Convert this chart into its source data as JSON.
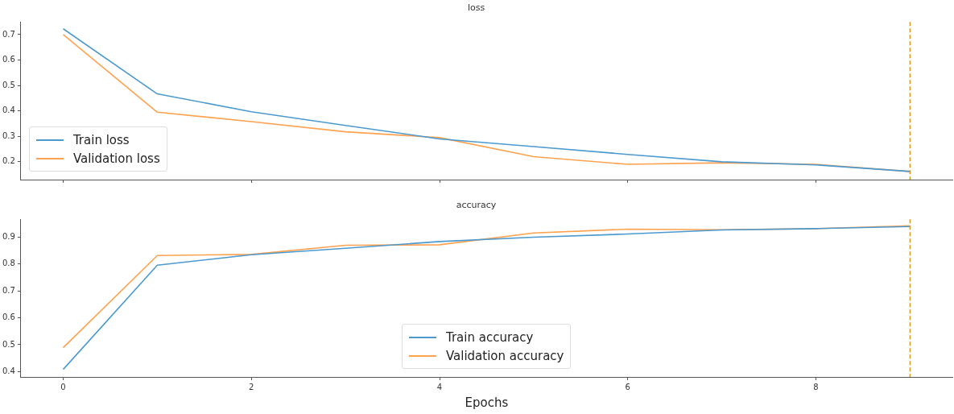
{
  "chart_data": [
    {
      "type": "line",
      "title": "loss",
      "x": [
        0,
        1,
        2,
        3,
        4,
        5,
        6,
        7,
        8,
        9
      ],
      "xlim": [
        -0.45,
        9.45
      ],
      "xticks": [
        {
          "value": 0,
          "label": null
        },
        {
          "value": 2,
          "label": null
        },
        {
          "value": 4,
          "label": null
        },
        {
          "value": 6,
          "label": null
        },
        {
          "value": 8,
          "label": null
        }
      ],
      "ylim": [
        0.13,
        0.75
      ],
      "yticks": [
        0.2,
        0.3,
        0.4,
        0.5,
        0.6,
        0.7
      ],
      "tick_labels": "y",
      "grid": false,
      "legend": "bottom left",
      "marker": "none",
      "line_style": "solid",
      "series": [
        {
          "name": "Train loss",
          "color": "#4c9acf",
          "values": [
            0.723,
            0.467,
            0.397,
            0.343,
            0.29,
            0.26,
            0.229,
            0.2,
            0.188,
            0.162
          ]
        },
        {
          "name": "Validation loss",
          "color": "#ffa24f",
          "values": [
            0.7,
            0.395,
            0.358,
            0.318,
            0.295,
            0.22,
            0.19,
            0.196,
            0.19,
            0.162
          ]
        }
      ],
      "ref_lines": [
        {
          "axis": "x",
          "value": 9,
          "color": "#d99a1c",
          "line_style": "dashed"
        }
      ]
    },
    {
      "type": "line",
      "title": "accuracy",
      "xlabel": "Epochs",
      "x": [
        0,
        1,
        2,
        3,
        4,
        5,
        6,
        7,
        8,
        9
      ],
      "xlim": [
        -0.45,
        9.45
      ],
      "xticks": [
        0,
        2,
        4,
        6,
        8
      ],
      "ylim": [
        0.38,
        0.967
      ],
      "yticks": [
        0.4,
        0.5,
        0.6,
        0.7,
        0.8,
        0.9
      ],
      "grid": false,
      "legend": "bottom",
      "marker": "none",
      "line_style": "solid",
      "series": [
        {
          "name": "Train accuracy",
          "color": "#4c9acf",
          "values": [
            0.408,
            0.796,
            0.835,
            0.859,
            0.884,
            0.9,
            0.912,
            0.927,
            0.932,
            0.94
          ]
        },
        {
          "name": "Validation accuracy",
          "color": "#ffa24f",
          "values": [
            0.489,
            0.832,
            0.836,
            0.87,
            0.872,
            0.916,
            0.93,
            0.928,
            0.932,
            0.943
          ]
        }
      ],
      "ref_lines": [
        {
          "axis": "x",
          "value": 9,
          "color": "#d99a1c",
          "line_style": "dashed"
        }
      ]
    }
  ]
}
